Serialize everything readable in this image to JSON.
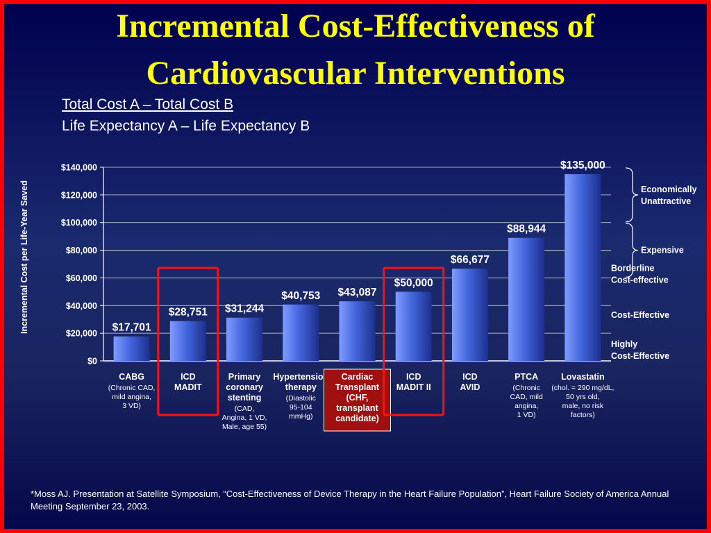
{
  "title_line1": "Incremental Cost-Effectiveness of",
  "title_line2": "Cardiovascular Interventions",
  "formula_numerator": "Total Cost A  –  Total Cost B",
  "formula_denominator": "Life Expectancy A  –  Life Expectancy B",
  "footnote": "*Moss AJ.  Presentation at Satellite Symposium, “Cost-Effectiveness of Device Therapy in the Heart Failure Population”,  Heart Failure Society of America Annual Meeting September 23, 2003.",
  "colors": {
    "title": "#ffff00",
    "bar": "#4466dd",
    "highlight_box": "#ff1010",
    "transplant_label_bg": "#a01010"
  },
  "chart_data": {
    "type": "bar",
    "ylabel": "Incremental Cost per Life-Year Saved",
    "ylim": [
      0,
      140000
    ],
    "yticks": [
      "$0",
      "$20,000",
      "$40,000",
      "$60,000",
      "$80,000",
      "$100,000",
      "$120,000",
      "$140,000"
    ],
    "grid": true,
    "values": [
      17701,
      28751,
      31244,
      40753,
      43087,
      50000,
      66677,
      88944,
      135000
    ],
    "value_labels": [
      "$17,701",
      "$28,751",
      "$31,244",
      "$40,753",
      "$43,087",
      "$50,000",
      "$66,677",
      "$88,944",
      "$135,000"
    ],
    "categories": [
      {
        "bold": [
          "CABG"
        ],
        "detail": [
          "(Chronic CAD,",
          "mild angina,",
          "3 VD)"
        ],
        "highlighted": false,
        "shaded": false
      },
      {
        "bold": [
          "ICD",
          "MADIT"
        ],
        "detail": [],
        "highlighted": true,
        "shaded": false
      },
      {
        "bold": [
          "Primary",
          "coronary",
          "stenting"
        ],
        "detail": [
          "(CAD,",
          "Angina, 1 VD,",
          "Male, age 55)"
        ],
        "highlighted": false,
        "shaded": false
      },
      {
        "bold": [
          "Hypertension",
          "therapy"
        ],
        "detail": [
          "(Diastolic",
          "95-104",
          "mmHg)"
        ],
        "highlighted": false,
        "shaded": false
      },
      {
        "bold": [
          "Cardiac",
          "Transplant",
          "(CHF,",
          "transplant",
          "candidate)"
        ],
        "detail": [],
        "highlighted": false,
        "shaded": true
      },
      {
        "bold": [
          "ICD",
          "MADIT II"
        ],
        "detail": [],
        "highlighted": true,
        "shaded": false
      },
      {
        "bold": [
          "ICD",
          "AVID"
        ],
        "detail": [],
        "highlighted": false,
        "shaded": false
      },
      {
        "bold": [
          "PTCA"
        ],
        "detail": [
          "(Chronic",
          "CAD, mild",
          "angina,",
          "1 VD)"
        ],
        "highlighted": false,
        "shaded": false
      },
      {
        "bold": [
          "Lovastatin"
        ],
        "detail": [
          "(chol. = 290 mg/dL,",
          "50 yrs old,",
          "male, no risk",
          "factors)"
        ],
        "highlighted": false,
        "shaded": false
      }
    ],
    "zones": [
      {
        "label": [
          "Economically",
          "Unattractive"
        ],
        "from": 100000,
        "to": 140000,
        "bracket": true
      },
      {
        "label": [
          "Expensive"
        ],
        "from": 60000,
        "to": 100000,
        "bracket": true
      },
      {
        "label": [
          "Borderline",
          "Cost-effective"
        ],
        "from": 40000,
        "to": 60000,
        "bracket": false
      },
      {
        "label": [
          "Cost-Effective"
        ],
        "from": 20000,
        "to": 40000,
        "bracket": false
      },
      {
        "label": [
          "Highly",
          "Cost-Effective"
        ],
        "from": 0,
        "to": 20000,
        "bracket": false
      }
    ]
  }
}
